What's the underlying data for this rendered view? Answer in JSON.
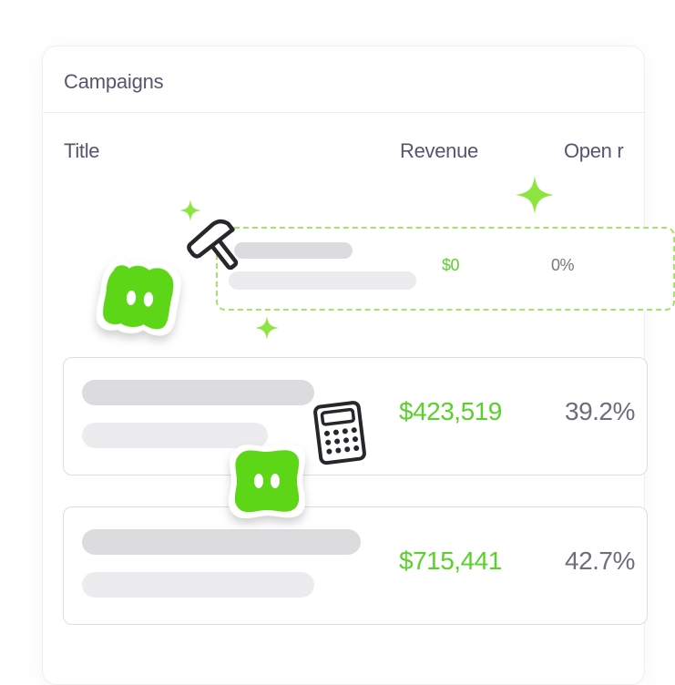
{
  "card": {
    "title": "Campaigns"
  },
  "columns": {
    "title": "Title",
    "revenue": "Revenue",
    "open_rate": "Open r"
  },
  "rows": [
    {
      "state": "draft",
      "revenue": "$0",
      "open_rate": "0%"
    },
    {
      "state": "normal",
      "revenue": "$423,519",
      "open_rate": "39.2%"
    },
    {
      "state": "normal",
      "revenue": "$715,441",
      "open_rate": "42.7%"
    }
  ],
  "icons": {
    "hammer": "hammer-icon",
    "calculator": "calculator-icon",
    "mascot": "mascot-blob",
    "sparkle": "sparkle-icon"
  },
  "colors": {
    "accent_green": "#59d12a",
    "mascot_green": "#5bd614",
    "text_dark": "#55566e",
    "text_muted": "#6e6e7a",
    "skeleton": "#dcdcdf",
    "dashed_border": "#a6e36a"
  }
}
